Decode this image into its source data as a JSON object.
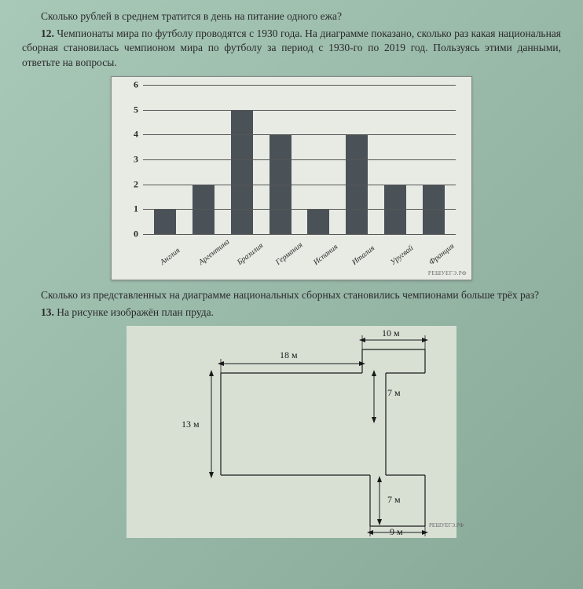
{
  "intro_question": "Сколько рублей в среднем тратится в день на питание одного ежа?",
  "q12": {
    "num": "12.",
    "text": "Чемпионаты мира по футболу проводятся с 1930 года. На диаграмме показано, сколько раз какая национальная сборная становилась чемпионом мира по футболу за период с 1930-го по 2019 год. Пользуясь этими данными, ответьте на вопросы."
  },
  "chart": {
    "ymax": 6,
    "yticks": [
      0,
      1,
      2,
      3,
      4,
      5,
      6
    ],
    "categories": [
      "Англия",
      "Аргентина",
      "Бразилия",
      "Германия",
      "Испания",
      "Италия",
      "Уругвай",
      "Франция"
    ],
    "values": [
      1,
      2,
      5,
      4,
      1,
      4,
      2,
      2
    ],
    "bar_color": "#4a5258",
    "bg_color": "#e8ebe4",
    "watermark": "РЕШУЕГЭ.РФ"
  },
  "q12_followup": "Сколько из представленных на диаграмме национальных сборных становились чемпионами больше трёх раз?",
  "q13": {
    "num": "13.",
    "text": "На рисунке изображён план пруда."
  },
  "pond": {
    "dims": {
      "top_right": "10 м",
      "main_width": "18 м",
      "notch_top": "7 м",
      "left_height": "13 м",
      "notch_bottom": "7 м",
      "bottom_right": "9 м"
    },
    "watermark": "РЕШУЕГЭ.РФ"
  }
}
